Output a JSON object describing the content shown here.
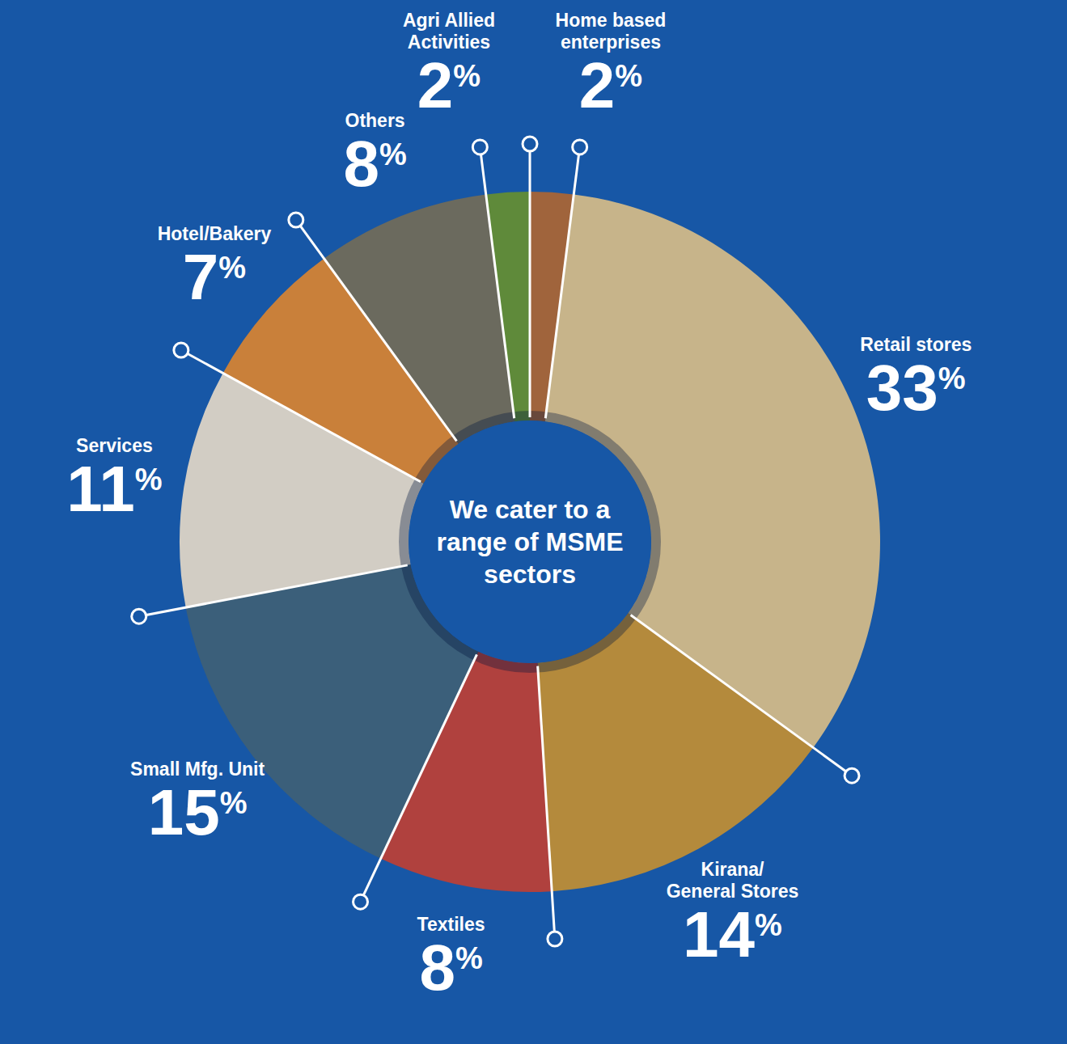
{
  "chart_data": {
    "type": "pie",
    "title": "We cater to a range of MSME sectors",
    "categories": [
      "Home based enterprises",
      "Retail stores",
      "Kirana/ General Stores",
      "Textiles",
      "Small Mfg. Unit",
      "Services",
      "Hotel/Bakery",
      "Others",
      "Agri Allied Activities"
    ],
    "values": [
      2,
      33,
      14,
      8,
      15,
      11,
      7,
      8,
      2
    ],
    "value_labels": [
      "2%",
      "33%",
      "14%",
      "8%",
      "15%",
      "11%",
      "7%",
      "8%",
      "2%"
    ],
    "colors": [
      "#a0643c",
      "#c7b48a",
      "#b48a3c",
      "#b0413e",
      "#3b5f7a",
      "#d2cdc4",
      "#c9803a",
      "#6b6a5e",
      "#5f8a3a"
    ],
    "data_labels": true
  }
}
